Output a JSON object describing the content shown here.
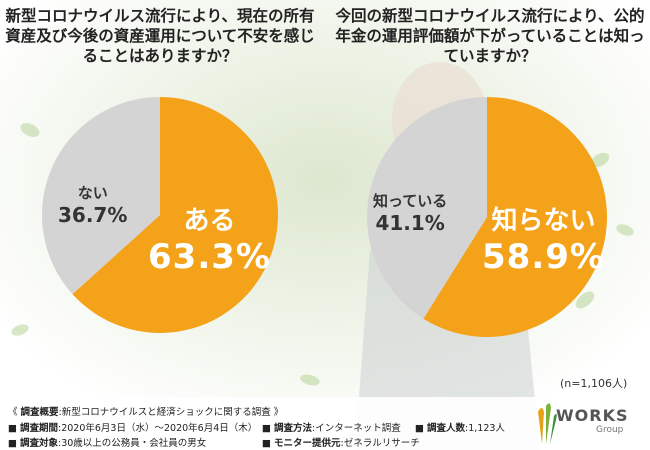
{
  "questions": {
    "left": "新型コロナウイルス流行により、現在の所有資産及び今後の資産運用について不安を感じることはありますか？",
    "right": "今回の新型コロナウイルス流行により、公的年金の運用評価額が下がっていることは知っていますか？"
  },
  "chart_data": [
    {
      "type": "pie",
      "title": "新型コロナウイルス流行により、現在の所有資産及び今後の資産運用について不安を感じることはありますか？",
      "slices": [
        {
          "label": "ある",
          "value": 63.3,
          "display": "63.3%",
          "color": "#f5a21b"
        },
        {
          "label": "ない",
          "value": 36.7,
          "display": "36.7%",
          "color": "#d4d4d4"
        }
      ]
    },
    {
      "type": "pie",
      "title": "今回の新型コロナウイルス流行により、公的年金の運用評価額が下がっていることは知っていますか？",
      "slices": [
        {
          "label": "知らない",
          "value": 58.9,
          "display": "58.9%",
          "color": "#f5a21b"
        },
        {
          "label": "知っている",
          "value": 41.1,
          "display": "41.1%",
          "color": "#d4d4d4"
        }
      ]
    }
  ],
  "n_note": "(n=1,106人)",
  "footer": {
    "overview_label": "調査概要",
    "overview_value": ":新型コロナウイルスと経済ショックに関する調査",
    "period_label": "調査期間",
    "period_value": ":2020年6月3日（水）〜2020年6月4日（木）",
    "method_label": "調査方法",
    "method_value": ":インターネット調査",
    "count_label": "調査人数",
    "count_value": ":1,123人",
    "target_label": "調査対象",
    "target_value": ":30歳以上の公務員・会社員の男女",
    "provider_label": "モニター提供元",
    "provider_value": ":ゼネラルリサーチ"
  },
  "logo": {
    "main": "WORKS",
    "sub": "Group"
  }
}
